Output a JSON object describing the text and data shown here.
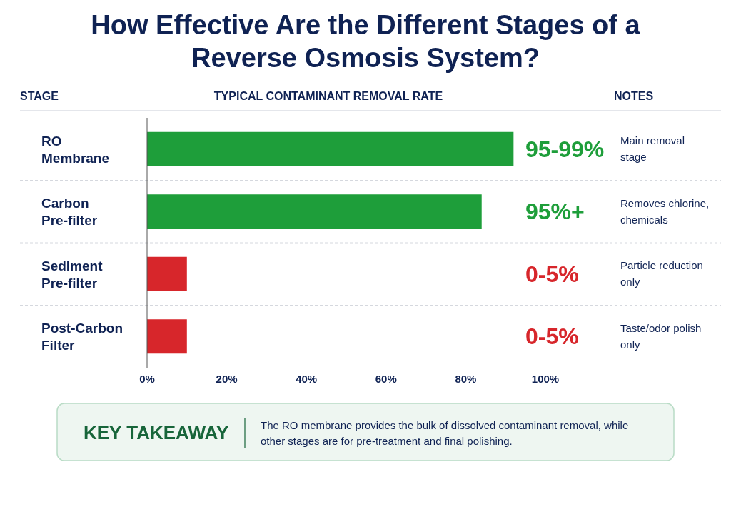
{
  "chart_data": {
    "type": "bar",
    "orientation": "horizontal",
    "relative": false,
    "title": "How Effective Are the Different Stages of a Reverse Osmosis System?",
    "xlabel": "TYPICAL CONTAMINANT REMOVAL RATE",
    "ylabel": "STAGE",
    "categories": [
      "RO Membrane",
      "Carbon Pre-filter",
      "Sediment Pre-filter",
      "Post-Carbon Filter"
    ],
    "values": [
      92,
      84,
      10,
      10
    ],
    "colors": [
      "#1e9e3a",
      "#1e9e3a",
      "#d7262b",
      "#d7262b"
    ],
    "xlim": [
      0,
      100
    ],
    "xticks": [
      {
        "value": 0,
        "label": "0%"
      },
      {
        "value": 20,
        "label": "20%"
      },
      {
        "value": 40,
        "label": "40%"
      },
      {
        "value": 60,
        "label": "60%"
      },
      {
        "value": 80,
        "label": "80%"
      },
      {
        "value": 100,
        "label": "100%"
      }
    ],
    "grid": false,
    "annotations": [
      "NOTES",
      "95-99%",
      "95%+",
      "0-5%",
      "0-5%",
      "Main removal stage",
      "Removes chlorine, chemicals",
      "Particle reduction only",
      "Taste/odor polish only",
      "KEY TAKEAWAY",
      "The RO membrane provides the bulk of dissolved contaminant removal, while other stages are for pre-treatment and final polishing."
    ]
  }
}
